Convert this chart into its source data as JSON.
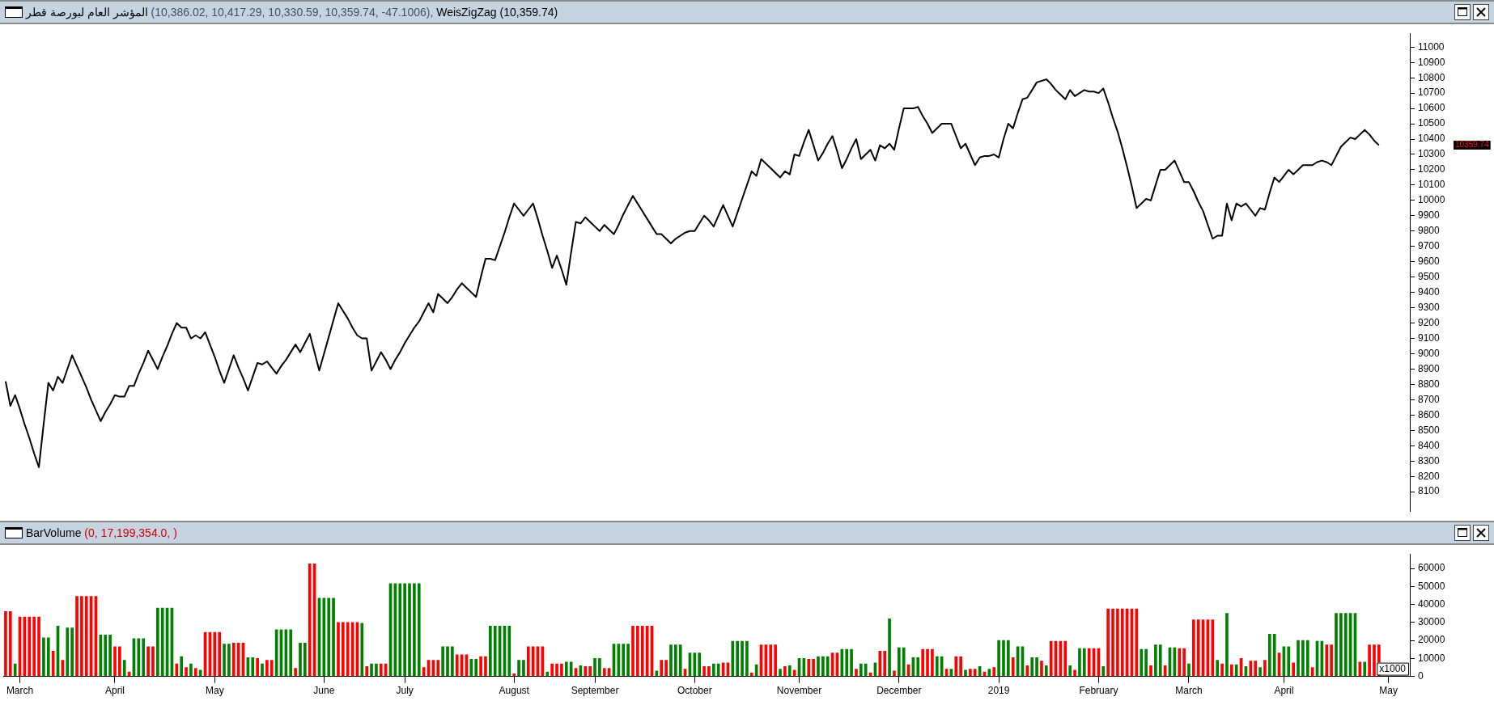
{
  "chart_data": [
    {
      "type": "line",
      "title": "المؤشر العام لبورصة قطر",
      "subtitle": "(10,386.02, 10,417.29, 10,330.59, 10,359.74, -47.1006),",
      "categories": [
        null,
        null,
        null,
        null,
        null,
        null,
        null,
        null,
        null,
        null,
        null,
        null,
        null,
        null,
        null,
        null,
        null,
        null,
        null,
        null,
        null,
        null,
        null,
        null,
        null,
        null,
        null,
        null,
        null,
        null,
        null,
        null,
        null,
        null,
        null,
        null,
        null,
        null,
        null,
        null,
        null,
        null,
        null,
        null,
        null,
        null,
        null,
        null,
        null,
        null,
        null,
        null,
        null,
        null,
        null,
        null,
        null,
        null,
        null,
        null,
        null,
        null,
        null,
        null,
        null,
        null,
        null,
        null,
        null,
        null,
        null,
        null,
        null,
        null,
        null,
        null,
        null,
        null,
        null,
        null,
        null,
        null,
        null,
        null,
        null,
        null,
        null,
        null,
        null,
        null,
        null,
        null,
        null,
        null,
        null,
        null,
        null,
        null,
        null,
        null,
        null,
        null,
        null,
        null,
        null,
        null,
        null,
        null,
        null,
        null,
        null,
        null,
        null,
        null,
        null,
        null,
        null,
        null,
        null,
        null,
        null,
        null,
        null,
        null,
        null,
        null,
        null,
        null,
        null,
        null,
        null,
        null,
        null,
        null,
        null,
        null,
        null,
        null,
        null,
        null,
        null,
        null,
        null,
        null,
        null,
        null,
        null,
        null,
        null,
        null,
        null,
        null,
        null,
        null,
        null,
        null,
        null,
        null,
        null,
        null,
        null,
        null,
        null,
        null,
        null,
        null,
        null,
        null,
        null,
        null,
        null,
        null,
        null,
        null,
        null,
        null,
        null,
        null,
        null,
        null,
        null,
        null,
        null,
        null,
        null,
        null,
        null,
        null,
        null,
        null,
        null,
        null,
        null,
        null,
        null,
        null,
        null,
        null,
        null,
        null,
        null,
        null,
        null,
        null,
        null,
        null,
        null,
        null,
        null,
        null,
        null,
        null,
        null,
        null,
        null,
        null,
        null,
        null,
        null,
        null,
        null,
        null,
        null,
        null,
        null,
        null,
        null,
        null,
        null,
        null,
        null,
        null,
        null,
        null,
        null,
        null,
        null,
        null,
        null,
        null,
        null,
        null,
        null,
        null,
        null,
        null,
        null,
        null,
        null,
        null,
        null,
        null,
        null,
        null,
        null,
        null,
        null,
        null,
        null,
        null,
        null,
        null,
        null,
        null,
        null,
        null,
        null,
        null,
        null,
        null,
        null,
        null,
        null,
        null,
        null,
        null,
        null,
        null,
        null,
        null,
        null,
        null,
        null,
        null,
        null,
        null,
        null,
        null,
        null,
        null,
        null,
        null,
        null,
        null,
        null,
        null
      ],
      "series": [
        {
          "name": "WeisZigZag (10,359.74)",
          "color": "#000000",
          "values": [
            8820,
            8660,
            8730,
            8640,
            8540,
            8450,
            8350,
            8260,
            8540,
            8810,
            8760,
            8850,
            8810,
            8900,
            8990,
            8920,
            8850,
            8780,
            8700,
            8630,
            8560,
            8620,
            8670,
            8730,
            8720,
            8720,
            8790,
            8790,
            8870,
            8940,
            9020,
            8960,
            8900,
            8980,
            9050,
            9130,
            9200,
            9170,
            9170,
            9100,
            9120,
            9100,
            9140,
            9060,
            8980,
            8890,
            8810,
            8900,
            8990,
            8910,
            8840,
            8760,
            8850,
            8940,
            8930,
            8950,
            8910,
            8870,
            8920,
            8960,
            9010,
            9060,
            9010,
            9070,
            9130,
            9010,
            8890,
            9000,
            9110,
            9220,
            9330,
            9280,
            9230,
            9170,
            9120,
            9100,
            9100,
            8890,
            8950,
            9010,
            8960,
            8900,
            8960,
            9010,
            9070,
            9120,
            9170,
            9210,
            9270,
            9330,
            9270,
            9390,
            9360,
            9330,
            9370,
            9420,
            9460,
            9430,
            9400,
            9370,
            9500,
            9620,
            9620,
            9610,
            9700,
            9790,
            9890,
            9980,
            9940,
            9900,
            9940,
            9980,
            9880,
            9770,
            9670,
            9560,
            9640,
            9550,
            9450,
            9660,
            9860,
            9850,
            9890,
            9860,
            9830,
            9800,
            9840,
            9810,
            9780,
            9840,
            9910,
            9970,
            10030,
            9980,
            9930,
            9880,
            9830,
            9780,
            9780,
            9750,
            9720,
            9750,
            9770,
            9790,
            9800,
            9800,
            9850,
            9900,
            9870,
            9830,
            9900,
            9970,
            9900,
            9830,
            9920,
            10010,
            10100,
            10190,
            10160,
            10270,
            10240,
            10210,
            10180,
            10150,
            10190,
            10170,
            10300,
            10290,
            10380,
            10460,
            10360,
            10260,
            10310,
            10370,
            10420,
            10320,
            10210,
            10270,
            10340,
            10400,
            10270,
            10300,
            10330,
            10260,
            10360,
            10340,
            10370,
            10330,
            10470,
            10600,
            10600,
            10600,
            10610,
            10550,
            10500,
            10440,
            10470,
            10500,
            10500,
            10500,
            10420,
            10340,
            10370,
            10300,
            10230,
            10280,
            10290,
            10290,
            10300,
            10280,
            10400,
            10500,
            10470,
            10570,
            10660,
            10670,
            10720,
            10770,
            10780,
            10790,
            10760,
            10720,
            10690,
            10660,
            10720,
            10680,
            10700,
            10720,
            10710,
            10710,
            10700,
            10730,
            10640,
            10540,
            10450,
            10340,
            10220,
            10090,
            9950,
            9980,
            10010,
            10000,
            10100,
            10200,
            10200,
            10230,
            10260,
            10190,
            10120,
            10120,
            10060,
            9990,
            9930,
            9840,
            9750,
            9770,
            9770,
            9980,
            9870,
            9980,
            9960,
            9980,
            9940,
            9900,
            9950,
            9940,
            10050,
            10150,
            10120,
            10160,
            10200,
            10170,
            10200,
            10230,
            10230,
            10230,
            10250,
            10260,
            10250,
            10230,
            10290,
            10350,
            10380,
            10410,
            10400,
            10430,
            10460,
            10430,
            10390,
            10360,
            null,
            null,
            null,
            null,
            null,
            null
          ]
        }
      ],
      "ylim": [
        7970,
        11090
      ],
      "yticks": [
        8100,
        8200,
        8300,
        8400,
        8500,
        8600,
        8700,
        8800,
        8900,
        9000,
        9100,
        9200,
        9300,
        9400,
        9500,
        9600,
        9700,
        9800,
        9900,
        10000,
        10100,
        10200,
        10300,
        10400,
        10500,
        10600,
        10700,
        10800,
        10900,
        11000
      ],
      "tick_labels": "y",
      "annotations": [
        "10359.74"
      ]
    },
    {
      "type": "bar",
      "title": "BarVolume",
      "subtitle": "(0, 17,199,354.0, )",
      "categories": [
        null,
        null,
        null,
        "March",
        null,
        null,
        null,
        null,
        null,
        null,
        null,
        null,
        null,
        null,
        null,
        null,
        null,
        null,
        null,
        null,
        null,
        null,
        null,
        "April",
        null,
        null,
        null,
        null,
        null,
        null,
        null,
        null,
        null,
        null,
        null,
        null,
        null,
        null,
        null,
        null,
        null,
        null,
        null,
        null,
        "May",
        null,
        null,
        null,
        null,
        null,
        null,
        null,
        null,
        null,
        null,
        null,
        null,
        null,
        null,
        null,
        null,
        null,
        null,
        null,
        null,
        null,
        null,
        "June",
        null,
        null,
        null,
        null,
        null,
        null,
        null,
        null,
        null,
        null,
        null,
        null,
        null,
        null,
        null,
        null,
        "July",
        null,
        null,
        null,
        null,
        null,
        null,
        null,
        null,
        null,
        null,
        null,
        null,
        null,
        null,
        null,
        null,
        null,
        null,
        null,
        null,
        null,
        null,
        "August",
        null,
        null,
        null,
        null,
        null,
        null,
        null,
        null,
        null,
        null,
        null,
        null,
        null,
        null,
        null,
        null,
        "September",
        null,
        null,
        null,
        null,
        null,
        null,
        null,
        null,
        null,
        null,
        null,
        null,
        null,
        null,
        null,
        null,
        null,
        null,
        null,
        null,
        "October",
        null,
        null,
        null,
        null,
        null,
        null,
        null,
        null,
        null,
        null,
        null,
        null,
        null,
        null,
        null,
        null,
        null,
        null,
        null,
        null,
        null,
        "November",
        null,
        null,
        null,
        null,
        null,
        null,
        null,
        null,
        null,
        null,
        null,
        null,
        null,
        null,
        null,
        null,
        null,
        null,
        null,
        null,
        "December",
        null,
        null,
        null,
        null,
        null,
        null,
        null,
        null,
        null,
        null,
        null,
        null,
        null,
        null,
        null,
        null,
        null,
        null,
        null,
        null,
        "2019",
        null,
        null,
        null,
        null,
        null,
        null,
        null,
        null,
        null,
        null,
        null,
        null,
        null,
        null,
        null,
        null,
        null,
        null,
        null,
        null,
        "February",
        null,
        null,
        null,
        null,
        null,
        null,
        null,
        null,
        null,
        null,
        null,
        null,
        null,
        null,
        null,
        null,
        null,
        null,
        "March",
        null,
        null,
        null,
        null,
        null,
        null,
        null,
        null,
        null,
        null,
        null,
        null,
        null,
        null,
        null,
        null,
        null,
        null,
        null,
        "April",
        null,
        null,
        null,
        null,
        null,
        null,
        null,
        null,
        null,
        null,
        null,
        null,
        null,
        null,
        null,
        null,
        null,
        null,
        null,
        null,
        null,
        "May",
        null,
        null,
        null,
        null
      ],
      "values": [
        36000,
        36000,
        7000,
        33000,
        33000,
        33000,
        33000,
        33000,
        21500,
        21500,
        14000,
        28000,
        9000,
        27000,
        27000,
        44500,
        44500,
        44500,
        44500,
        44500,
        23000,
        23000,
        23000,
        16500,
        16500,
        9000,
        2500,
        21000,
        21000,
        21000,
        16500,
        16500,
        38000,
        38000,
        38000,
        38000,
        7000,
        11000,
        5000,
        7000,
        4500,
        3500,
        24500,
        24500,
        24500,
        24500,
        18000,
        18000,
        18500,
        18500,
        18500,
        10500,
        10500,
        10000,
        7000,
        9000,
        9000,
        26000,
        26000,
        26000,
        26000,
        4500,
        18500,
        18500,
        62500,
        62500,
        43500,
        43500,
        43500,
        43500,
        30000,
        30000,
        30000,
        30000,
        30000,
        29500,
        5500,
        7000,
        7000,
        7000,
        7000,
        51500,
        51500,
        51500,
        51500,
        51500,
        51500,
        51500,
        5000,
        9000,
        9000,
        9000,
        16500,
        16500,
        16500,
        12000,
        12000,
        12000,
        9500,
        9500,
        11000,
        11000,
        28000,
        28000,
        28000,
        28000,
        28000,
        1500,
        9000,
        9000,
        16500,
        16500,
        16500,
        16500,
        2500,
        7000,
        7000,
        7000,
        8000,
        8000,
        4500,
        6000,
        5500,
        5500,
        10000,
        10000,
        4500,
        4500,
        18000,
        18000,
        18000,
        18000,
        28000,
        28000,
        28000,
        28000,
        28000,
        3000,
        9000,
        9000,
        17500,
        17500,
        17500,
        4000,
        13000,
        13000,
        13000,
        5500,
        5500,
        7000,
        7000,
        7500,
        7500,
        19500,
        19500,
        19500,
        19500,
        2000,
        6500,
        17500,
        17500,
        17500,
        17500,
        4000,
        5500,
        6000,
        3500,
        10000,
        10000,
        9500,
        9500,
        11000,
        11000,
        11000,
        13000,
        13000,
        15000,
        15000,
        15000,
        4000,
        7000,
        7000,
        2000,
        7500,
        14000,
        14000,
        32000,
        3000,
        16000,
        16000,
        6500,
        10500,
        10500,
        15000,
        15000,
        15000,
        11000,
        11000,
        4000,
        4000,
        11000,
        11000,
        3500,
        4000,
        4000,
        5500,
        2500,
        4000,
        5000,
        20000,
        20000,
        20000,
        10500,
        16500,
        16500,
        6000,
        10500,
        10500,
        8500,
        6000,
        19500,
        19500,
        19500,
        19500,
        6000,
        3500,
        15500,
        15500,
        15500,
        15500,
        15500,
        5500,
        37500,
        37500,
        37500,
        37500,
        37500,
        37500,
        37500,
        15000,
        15000,
        6000,
        17500,
        17500,
        6000,
        16000,
        16000,
        15500,
        15500,
        7000,
        31500,
        31500,
        31500,
        31500,
        31500,
        9000,
        7000,
        35000,
        6500,
        6500,
        10000,
        5500,
        8500,
        8500,
        5000,
        9000,
        23500,
        23500,
        13000,
        16500,
        16500,
        7500,
        20000,
        20000,
        20000,
        5000,
        19500,
        19500,
        17500,
        17500,
        35000,
        35000,
        35000,
        35000,
        35000,
        8000,
        8000,
        17500,
        17500,
        17500,
        null,
        null,
        null,
        null,
        null,
        null
      ],
      "colors": [
        "#ff0000",
        "#ff0000",
        "#008000",
        "#ff0000",
        "#ff0000",
        "#ff0000",
        "#ff0000",
        "#ff0000",
        "#008000",
        "#008000",
        "#ff0000",
        "#008000",
        "#ff0000",
        "#008000",
        "#008000",
        "#ff0000",
        "#ff0000",
        "#ff0000",
        "#ff0000",
        "#ff0000",
        "#008000",
        "#008000",
        "#008000",
        "#ff0000",
        "#ff0000",
        "#008000",
        "#ff0000",
        "#008000",
        "#008000",
        "#008000",
        "#ff0000",
        "#ff0000",
        "#008000",
        "#008000",
        "#008000",
        "#008000",
        "#ff0000",
        "#008000",
        "#ff0000",
        "#008000",
        "#ff0000",
        "#008000",
        "#ff0000",
        "#ff0000",
        "#ff0000",
        "#ff0000",
        "#008000",
        "#008000",
        "#ff0000",
        "#ff0000",
        "#ff0000",
        "#008000",
        "#008000",
        "#ff0000",
        "#008000",
        "#ff0000",
        "#ff0000",
        "#008000",
        "#008000",
        "#008000",
        "#008000",
        "#ff0000",
        "#008000",
        "#008000",
        "#ff0000",
        "#ff0000",
        "#008000",
        "#008000",
        "#008000",
        "#008000",
        "#ff0000",
        "#ff0000",
        "#ff0000",
        "#ff0000",
        "#ff0000",
        "#008000",
        "#ff0000",
        "#008000",
        "#008000",
        "#ff0000",
        "#ff0000",
        "#008000",
        "#008000",
        "#008000",
        "#008000",
        "#008000",
        "#008000",
        "#008000",
        "#ff0000",
        "#ff0000",
        "#ff0000",
        "#ff0000",
        "#008000",
        "#008000",
        "#008000",
        "#ff0000",
        "#ff0000",
        "#ff0000",
        "#008000",
        "#008000",
        "#ff0000",
        "#ff0000",
        "#008000",
        "#008000",
        "#008000",
        "#008000",
        "#008000",
        "#ff0000",
        "#008000",
        "#008000",
        "#ff0000",
        "#ff0000",
        "#ff0000",
        "#ff0000",
        "#008000",
        "#ff0000",
        "#ff0000",
        "#ff0000",
        "#008000",
        "#008000",
        "#ff0000",
        "#008000",
        "#ff0000",
        "#ff0000",
        "#008000",
        "#008000",
        "#ff0000",
        "#ff0000",
        "#008000",
        "#008000",
        "#008000",
        "#008000",
        "#ff0000",
        "#ff0000",
        "#ff0000",
        "#ff0000",
        "#ff0000",
        "#008000",
        "#ff0000",
        "#ff0000",
        "#008000",
        "#008000",
        "#008000",
        "#ff0000",
        "#008000",
        "#008000",
        "#008000",
        "#ff0000",
        "#ff0000",
        "#008000",
        "#008000",
        "#ff0000",
        "#ff0000",
        "#008000",
        "#008000",
        "#008000",
        "#008000",
        "#ff0000",
        "#008000",
        "#ff0000",
        "#ff0000",
        "#ff0000",
        "#ff0000",
        "#008000",
        "#ff0000",
        "#008000",
        "#ff0000",
        "#008000",
        "#008000",
        "#ff0000",
        "#ff0000",
        "#008000",
        "#008000",
        "#008000",
        "#ff0000",
        "#ff0000",
        "#008000",
        "#008000",
        "#008000",
        "#ff0000",
        "#008000",
        "#008000",
        "#ff0000",
        "#008000",
        "#ff0000",
        "#ff0000",
        "#008000",
        "#ff0000",
        "#008000",
        "#008000",
        "#ff0000",
        "#008000",
        "#008000",
        "#ff0000",
        "#ff0000",
        "#ff0000",
        "#008000",
        "#008000",
        "#ff0000",
        "#008000",
        "#ff0000",
        "#ff0000",
        "#008000",
        "#ff0000",
        "#ff0000",
        "#008000",
        "#ff0000",
        "#008000",
        "#ff0000",
        "#008000",
        "#008000",
        "#008000",
        "#ff0000",
        "#008000",
        "#008000",
        "#ff0000",
        "#008000",
        "#008000",
        "#ff0000",
        "#008000",
        "#ff0000",
        "#ff0000",
        "#ff0000",
        "#ff0000",
        "#008000",
        "#ff0000",
        "#008000",
        "#008000",
        "#ff0000",
        "#ff0000",
        "#ff0000",
        "#008000",
        "#ff0000",
        "#ff0000",
        "#ff0000",
        "#ff0000",
        "#ff0000",
        "#ff0000",
        "#ff0000",
        "#008000",
        "#008000",
        "#ff0000",
        "#008000",
        "#008000",
        "#ff0000",
        "#008000",
        "#008000",
        "#ff0000",
        "#ff0000",
        "#008000",
        "#ff0000",
        "#ff0000",
        "#ff0000",
        "#ff0000",
        "#ff0000",
        "#008000",
        "#ff0000",
        "#008000",
        "#ff0000",
        "#008000",
        "#ff0000",
        "#008000",
        "#ff0000",
        "#ff0000",
        "#008000",
        "#ff0000",
        "#008000",
        "#008000",
        "#ff0000",
        "#008000",
        "#008000",
        "#ff0000",
        "#008000",
        "#008000",
        "#008000",
        "#ff0000",
        "#008000",
        "#008000",
        "#ff0000",
        "#ff0000",
        "#008000",
        "#008000",
        "#008000",
        "#008000",
        "#008000",
        "#ff0000",
        "#008000",
        "#ff0000",
        "#ff0000",
        "#ff0000",
        null,
        null,
        null,
        null,
        null,
        null
      ],
      "ylim": [
        0,
        68000
      ],
      "yticks": [
        0,
        10000,
        20000,
        30000,
        40000,
        50000,
        60000
      ],
      "annotations": [
        "x1000"
      ]
    }
  ]
}
